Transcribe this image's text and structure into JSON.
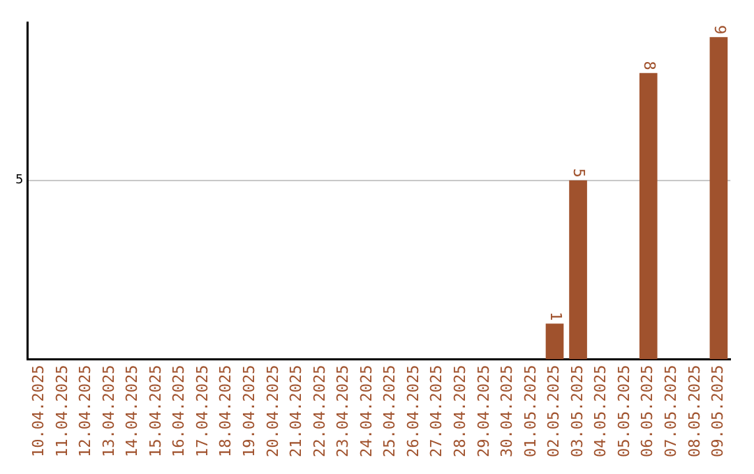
{
  "chart_data": {
    "type": "bar",
    "categories": [
      "10.04.2025",
      "11.04.2025",
      "12.04.2025",
      "13.04.2025",
      "14.04.2025",
      "15.04.2025",
      "16.04.2025",
      "17.04.2025",
      "18.04.2025",
      "19.04.2025",
      "20.04.2025",
      "21.04.2025",
      "22.04.2025",
      "23.04.2025",
      "24.04.2025",
      "25.04.2025",
      "26.04.2025",
      "27.04.2025",
      "28.04.2025",
      "29.04.2025",
      "30.04.2025",
      "01.05.2025",
      "02.05.2025",
      "03.05.2025",
      "04.05.2025",
      "05.05.2025",
      "06.05.2025",
      "07.05.2025",
      "08.05.2025",
      "09.05.2025"
    ],
    "values": [
      null,
      null,
      null,
      null,
      null,
      null,
      null,
      null,
      null,
      null,
      null,
      null,
      null,
      null,
      null,
      null,
      null,
      null,
      null,
      null,
      null,
      null,
      1,
      5,
      null,
      null,
      8,
      null,
      null,
      9
    ],
    "value_labels": [
      null,
      null,
      null,
      null,
      null,
      null,
      null,
      null,
      null,
      null,
      null,
      null,
      null,
      null,
      null,
      null,
      null,
      null,
      null,
      null,
      null,
      null,
      "1",
      "5",
      null,
      null,
      "8",
      null,
      null,
      "9"
    ],
    "color": "#a0522d",
    "ylim": [
      0,
      9.4
    ],
    "yticks": [
      5
    ],
    "grid": "y",
    "legend": false
  }
}
